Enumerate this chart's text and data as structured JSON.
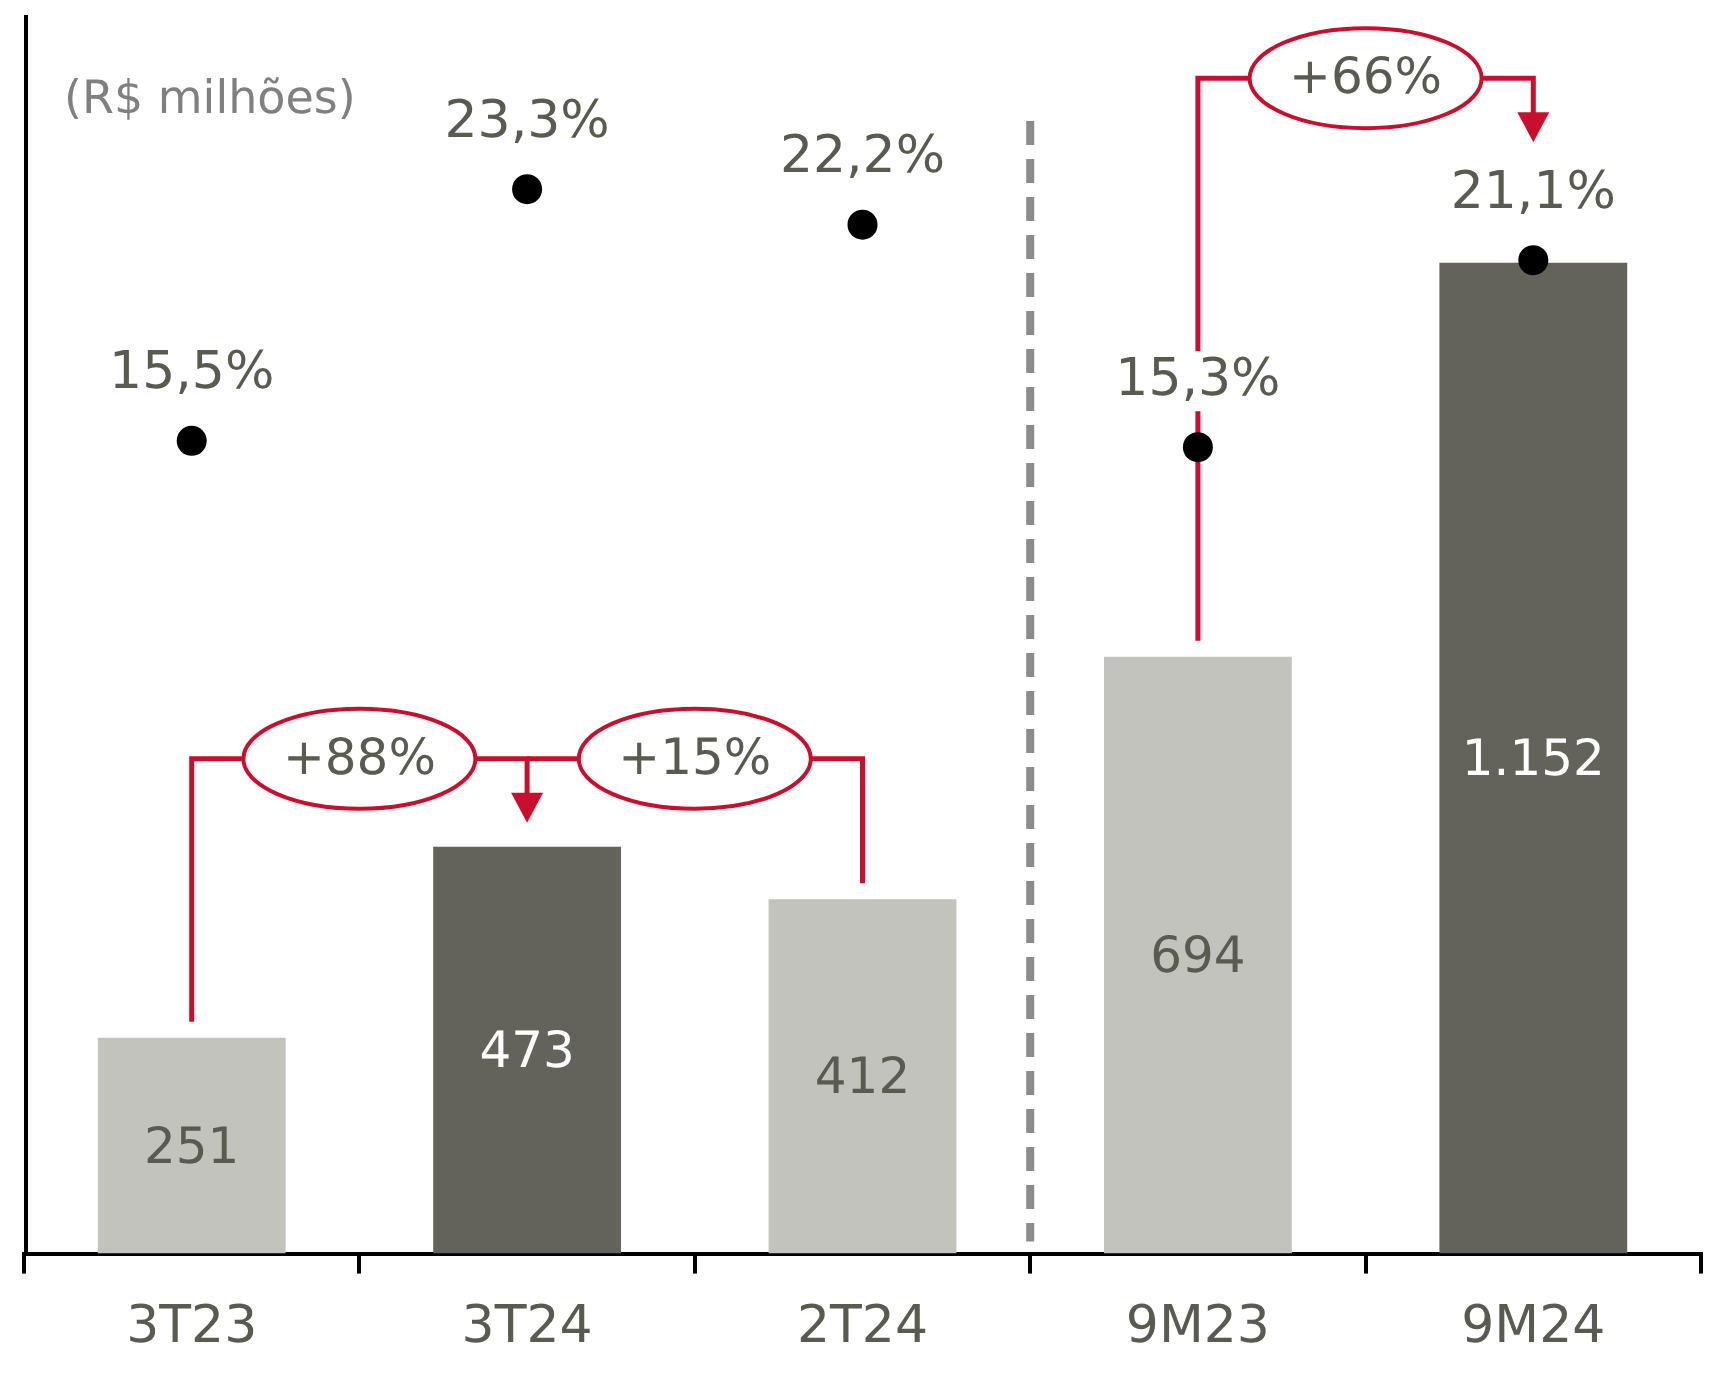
{
  "chart_data": {
    "type": "bar",
    "ylabel": "(R$ milhões)",
    "categories": [
      "3T23",
      "3T24",
      "2T24",
      "9M23",
      "9M24"
    ],
    "series": [
      {
        "type": "bar",
        "colors": [
          "#c2c3bd",
          "#64635b",
          "#c2c3bd",
          "#c2c3bd",
          "#64635b"
        ],
        "values": [
          251,
          473,
          412,
          694,
          1152
        ],
        "value_labels": [
          "251",
          "473",
          "412",
          "694",
          "1.152"
        ]
      },
      {
        "type": "scatter",
        "axis": "y2",
        "color": "#000000",
        "values": [
          15.5,
          23.3,
          22.2,
          15.3,
          21.1
        ],
        "value_labels": [
          "15,5%",
          "23,3%",
          "22,2%",
          "15,3%",
          "21,1%"
        ]
      }
    ],
    "ylim": [
      0,
      1440
    ],
    "tick_labels": "x",
    "marker": "circle",
    "annotations": [
      "+88%",
      "+15%",
      "+66%"
    ]
  }
}
